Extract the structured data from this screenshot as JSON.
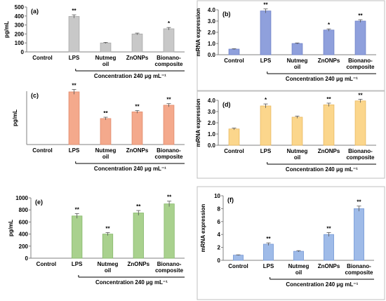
{
  "chart_data": [
    {
      "panel_label": "(a)",
      "type": "bar",
      "ylabel": "pg/mL",
      "ylim": [
        0,
        500
      ],
      "yticks": [
        "0",
        "100",
        "200",
        "300",
        "400",
        "500"
      ],
      "categories": [
        "Control",
        "LPS",
        "Nutmeg\noil",
        "ZnONPs",
        "Bionano-\ncomposite"
      ],
      "values": [
        0,
        395,
        100,
        200,
        258
      ],
      "errors": [
        0,
        18,
        6,
        10,
        14
      ],
      "significance": [
        "",
        "**",
        "",
        "",
        "*"
      ],
      "bar_color": "#c8c8c8",
      "bar_stroke": "#a8a8a8",
      "concentration_label": "Concentration 240  μg mL⁻¹",
      "grid": false
    },
    {
      "panel_label": "(b)",
      "type": "bar",
      "ylabel": "mRNA expression",
      "ylim": [
        0,
        4.0
      ],
      "yticks": [
        "0.0",
        "1.0",
        "2.0",
        "3.0",
        "4.0"
      ],
      "categories": [
        "Control",
        "LPS",
        "Nutmeg\noil",
        "ZnONPs",
        "Bionano-\ncomposite"
      ],
      "values": [
        0.5,
        3.9,
        1.0,
        2.2,
        3.0
      ],
      "errors": [
        0.04,
        0.18,
        0.05,
        0.1,
        0.12
      ],
      "significance": [
        "",
        "**",
        "",
        "*",
        "**"
      ],
      "bar_color": "#8fa0dc",
      "bar_stroke": "#6f82c8",
      "concentration_label": "Concentration 240  μg mL⁻¹",
      "grid": false
    },
    {
      "panel_label": "(c)",
      "type": "bar",
      "ylabel": "pg/mL",
      "ylim": [
        0,
        400
      ],
      "yticks": [],
      "categories": [
        "Control",
        "LPS",
        "Nutmeg\noil",
        "ZnONPs",
        "Bionano-\ncomposite"
      ],
      "values": [
        0,
        395,
        195,
        245,
        295
      ],
      "errors": [
        0,
        18,
        10,
        10,
        12
      ],
      "significance": [
        "",
        "**",
        "**",
        "**",
        "**"
      ],
      "bar_color": "#f4a98c",
      "bar_stroke": "#e08a6c",
      "concentration_label": "Concentration 240  μg mL⁻¹",
      "grid": false
    },
    {
      "panel_label": "(d)",
      "type": "bar",
      "ylabel": "mRNA expression",
      "ylim": [
        0,
        4.0
      ],
      "yticks": [
        "0.0",
        "1.0",
        "2.0",
        "3.0",
        "4.0"
      ],
      "categories": [
        "Control",
        "LPS",
        "Nutmeg\noil",
        "ZnONPs",
        "Bionano-\ncomposite"
      ],
      "values": [
        1.45,
        3.5,
        2.5,
        3.6,
        3.95
      ],
      "errors": [
        0.08,
        0.18,
        0.1,
        0.15,
        0.15
      ],
      "significance": [
        "",
        "*",
        "",
        "**",
        "**"
      ],
      "bar_color": "#fbd68c",
      "bar_stroke": "#e8b860",
      "concentration_label": "Concentration 240  μg mL⁻¹",
      "grid": false
    },
    {
      "panel_label": "(e)",
      "type": "bar",
      "ylabel": "pg/mL",
      "ylim": [
        0,
        1000
      ],
      "yticks": [
        "0",
        "200",
        "400",
        "600",
        "800",
        "1000"
      ],
      "categories": [
        "Control",
        "LPS",
        "Nutmeg\noil",
        "ZnONPs",
        "Bionano-\ncomposite"
      ],
      "values": [
        0,
        700,
        400,
        750,
        900
      ],
      "errors": [
        0,
        40,
        25,
        40,
        45
      ],
      "significance": [
        "",
        "**",
        "**",
        "**",
        "**"
      ],
      "bar_color": "#a9d18e",
      "bar_stroke": "#86b86a",
      "concentration_label": "Concentration 240  μg mL⁻¹",
      "grid": false
    },
    {
      "panel_label": "(f)",
      "type": "bar",
      "ylabel": "mRNA expression",
      "ylim": [
        0,
        10
      ],
      "yticks": [
        "0",
        "2",
        "4",
        "6",
        "8",
        "10"
      ],
      "categories": [
        "Control",
        "LPS",
        "Nutmeg\noil",
        "ZnONPs",
        "Bionano-\ncomposite"
      ],
      "values": [
        0.8,
        2.5,
        1.4,
        4.0,
        8.0
      ],
      "errors": [
        0.05,
        0.2,
        0.1,
        0.3,
        0.4
      ],
      "significance": [
        "",
        "**",
        "",
        "**",
        "**"
      ],
      "bar_color": "#9fbbe8",
      "bar_stroke": "#7a9bd6",
      "concentration_label": "Concentration 240  μg mL⁻¹",
      "grid": false
    }
  ]
}
